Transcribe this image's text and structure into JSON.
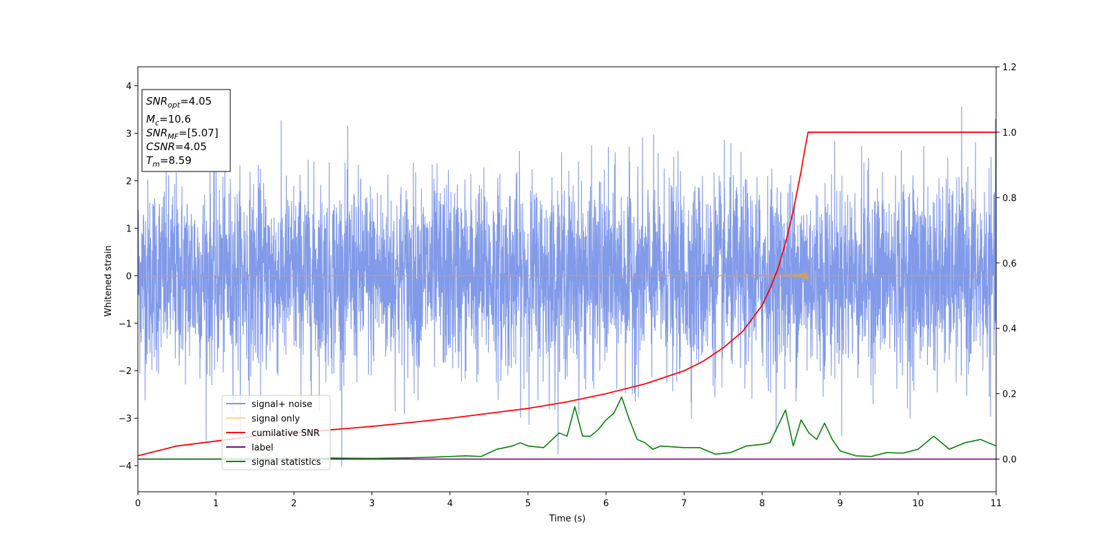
{
  "chart_data": {
    "type": "line",
    "xlabel": "Time (s)",
    "ylabel": "Whitened strain",
    "xlim": [
      0,
      11
    ],
    "ylim": [
      -4.55,
      4.4
    ],
    "ylim_right": [
      -0.1,
      1.2
    ],
    "x_ticks": [
      0,
      1,
      2,
      3,
      4,
      5,
      6,
      7,
      8,
      9,
      10,
      11
    ],
    "y_ticks": [
      -4,
      -3,
      -2,
      -1,
      0,
      1,
      2,
      3,
      4
    ],
    "y_tick_labels": [
      "−4",
      "−3",
      "−2",
      "−1",
      "0",
      "1",
      "2",
      "3",
      "4"
    ],
    "y_right_ticks": [
      0.0,
      0.2,
      0.4,
      0.6,
      0.8,
      1.0,
      1.2
    ],
    "y_right_tick_labels": [
      "0.0",
      "0.2",
      "0.4",
      "0.6",
      "0.8",
      "1.0",
      "1.2"
    ],
    "grid": false,
    "legend_position": "lower-left",
    "legend": [
      {
        "label": "signal+ noise",
        "color": "#7a95e8"
      },
      {
        "label": "signal only",
        "color": "#ffd580"
      },
      {
        "label": "cumilative SNR",
        "color": "#ff0000"
      },
      {
        "label": "label",
        "color": "#800080"
      },
      {
        "label": "signal statistics",
        "color": "#008000"
      }
    ],
    "info_box": [
      {
        "base": "SNR",
        "sub": "opt",
        "value": "=4.05"
      },
      {
        "base": "M",
        "sub": "c",
        "value": "=10.6"
      },
      {
        "base": "SNR",
        "sub": "MF",
        "value": "=[5.07]"
      },
      {
        "base": "CSNR",
        "sub": "",
        "value": "=4.05"
      },
      {
        "base": "T",
        "sub": "m",
        "value": "=8.59"
      }
    ],
    "series": [
      {
        "name": "signal+ noise",
        "axis": "left",
        "color": "#7a95e8",
        "description_stats": {
          "mean": 0,
          "std": 1,
          "min": -4.15,
          "max": 4.02,
          "duration_s": 11
        }
      },
      {
        "name": "signal only",
        "axis": "left",
        "color": "#c8a070",
        "chirp": {
          "start_s": 0,
          "merger_s": 8.59,
          "peak_amplitude_pos": 0.72,
          "peak_amplitude_neg": -0.58
        }
      },
      {
        "name": "cumilative SNR",
        "axis": "right",
        "color": "#ff0000",
        "x": [
          0,
          0.5,
          1,
          1.5,
          2,
          2.5,
          3,
          3.5,
          4,
          4.5,
          5,
          5.5,
          6,
          6.5,
          7,
          7.25,
          7.5,
          7.75,
          8,
          8.1,
          8.2,
          8.3,
          8.4,
          8.5,
          8.55,
          8.59,
          8.6,
          11
        ],
        "values": [
          0.01,
          0.04,
          0.055,
          0.07,
          0.08,
          0.09,
          0.1,
          0.112,
          0.125,
          0.14,
          0.155,
          0.175,
          0.2,
          0.23,
          0.27,
          0.3,
          0.34,
          0.39,
          0.47,
          0.52,
          0.58,
          0.66,
          0.76,
          0.88,
          0.95,
          1.0,
          1.0,
          1.0
        ]
      },
      {
        "name": "label",
        "axis": "right",
        "color": "#800080",
        "x": [
          0,
          11
        ],
        "values": [
          0.0,
          0.0
        ]
      },
      {
        "name": "signal statistics",
        "axis": "right",
        "color": "#008000",
        "x": [
          0,
          1,
          2,
          2.5,
          3,
          3.5,
          3.8,
          4,
          4.2,
          4.4,
          4.6,
          4.8,
          4.9,
          5.0,
          5.2,
          5.4,
          5.5,
          5.6,
          5.7,
          5.8,
          5.9,
          6.0,
          6.1,
          6.2,
          6.3,
          6.4,
          6.5,
          6.6,
          6.7,
          7.0,
          7.2,
          7.4,
          7.6,
          7.8,
          8.0,
          8.1,
          8.2,
          8.3,
          8.4,
          8.5,
          8.6,
          8.7,
          8.8,
          8.9,
          9.0,
          9.2,
          9.4,
          9.6,
          9.8,
          10.0,
          10.2,
          10.4,
          10.6,
          10.8,
          11.0
        ],
        "values": [
          0.0,
          0.0,
          0.0,
          0.003,
          0.002,
          0.004,
          0.006,
          0.008,
          0.01,
          0.008,
          0.03,
          0.04,
          0.05,
          0.04,
          0.035,
          0.08,
          0.07,
          0.16,
          0.07,
          0.07,
          0.09,
          0.12,
          0.14,
          0.19,
          0.12,
          0.06,
          0.05,
          0.03,
          0.04,
          0.035,
          0.035,
          0.015,
          0.02,
          0.04,
          0.045,
          0.05,
          0.1,
          0.15,
          0.04,
          0.12,
          0.08,
          0.06,
          0.11,
          0.06,
          0.025,
          0.01,
          0.008,
          0.02,
          0.018,
          0.03,
          0.07,
          0.03,
          0.05,
          0.06,
          0.04
        ]
      }
    ]
  }
}
